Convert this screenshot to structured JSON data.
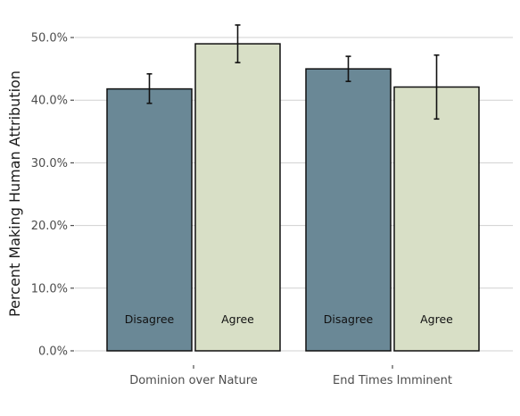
{
  "chart_data": {
    "type": "bar",
    "ylabel": "Percent Making Human Attribution",
    "xlabel": "",
    "ylim": [
      0,
      0.52
    ],
    "yticks": [
      0,
      0.1,
      0.2,
      0.3,
      0.4,
      0.5
    ],
    "ytick_labels": [
      "0.0%",
      "10.0%",
      "20.0%",
      "30.0%",
      "40.0%",
      "50.0%"
    ],
    "grid": true,
    "colors": {
      "Disagree": "#6a8896",
      "Agree": "#d8dfc6"
    },
    "groups": [
      {
        "name": "Dominion over Nature",
        "bars": [
          {
            "label": "Disagree",
            "value": 0.418,
            "err_low": 0.395,
            "err_high": 0.442
          },
          {
            "label": "Agree",
            "value": 0.49,
            "err_low": 0.46,
            "err_high": 0.52
          }
        ]
      },
      {
        "name": "End Times Imminent",
        "bars": [
          {
            "label": "Disagree",
            "value": 0.45,
            "err_low": 0.43,
            "err_high": 0.47
          },
          {
            "label": "Agree",
            "value": 0.421,
            "err_low": 0.37,
            "err_high": 0.472
          }
        ]
      }
    ]
  }
}
